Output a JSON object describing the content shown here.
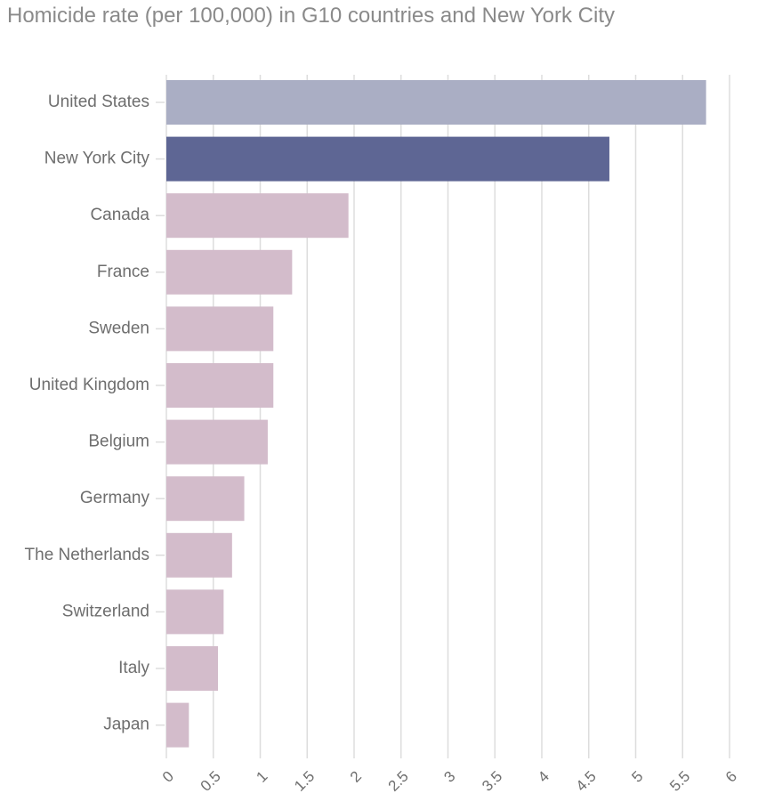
{
  "chart_data": {
    "type": "bar",
    "orientation": "horizontal",
    "title": "Homicide rate (per 100,000) in G10 countries and New York City",
    "xlabel": "",
    "ylabel": "",
    "xlim": [
      0,
      6
    ],
    "grid": true,
    "legend": "none",
    "ticks": [
      "0",
      "0.5",
      "1",
      "1.5",
      "2",
      "2.5",
      "3",
      "3.5",
      "4",
      "4.5",
      "5",
      "5.5",
      "6"
    ],
    "tick_values": [
      0,
      0.5,
      1,
      1.5,
      2,
      2.5,
      3,
      3.5,
      4,
      4.5,
      5,
      5.5,
      6
    ],
    "categories": [
      "United States",
      "New York City",
      "Canada",
      "France",
      "Sweden",
      "United Kingdom",
      "Belgium",
      "Germany",
      "The Netherlands",
      "Switzerland",
      "Italy",
      "Japan"
    ],
    "values": [
      5.75,
      4.72,
      1.94,
      1.34,
      1.14,
      1.14,
      1.08,
      0.83,
      0.7,
      0.61,
      0.55,
      0.24
    ],
    "colors": {
      "united_states": "#aaaec4",
      "new_york_city": "#5e6694",
      "other": "#d3bccb",
      "grid": "#dddddd",
      "text": "#6e6e6e",
      "title": "#8a8a8a"
    }
  }
}
